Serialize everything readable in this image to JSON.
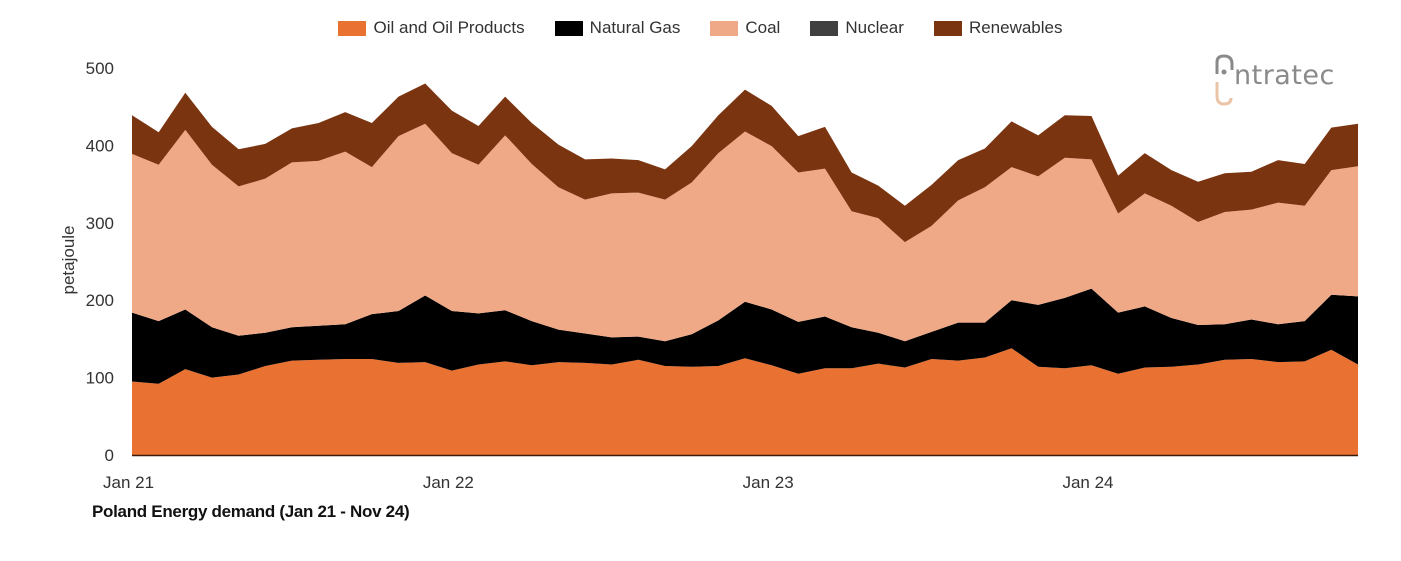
{
  "chart_data": {
    "type": "area",
    "stacked": true,
    "title": "Poland Energy demand (Jan 21 - Nov 24)",
    "xlabel": "",
    "ylabel": "petajoule",
    "ylim": [
      0,
      500
    ],
    "yticks": [
      0,
      100,
      200,
      300,
      400,
      500
    ],
    "xtick_labels": [
      {
        "label": "Jan 21",
        "index": 0
      },
      {
        "label": "Jan 22",
        "index": 12
      },
      {
        "label": "Jan 23",
        "index": 24
      },
      {
        "label": "Jan 24",
        "index": 36
      }
    ],
    "grid": false,
    "legend_position": "top-center",
    "x": [
      "Jan 21",
      "Feb 21",
      "Mar 21",
      "Apr 21",
      "May 21",
      "Jun 21",
      "Jul 21",
      "Aug 21",
      "Sep 21",
      "Oct 21",
      "Nov 21",
      "Dec 21",
      "Jan 22",
      "Feb 22",
      "Mar 22",
      "Apr 22",
      "May 22",
      "Jun 22",
      "Jul 22",
      "Aug 22",
      "Sep 22",
      "Oct 22",
      "Nov 22",
      "Dec 22",
      "Jan 23",
      "Feb 23",
      "Mar 23",
      "Apr 23",
      "May 23",
      "Jun 23",
      "Jul 23",
      "Aug 23",
      "Sep 23",
      "Oct 23",
      "Nov 23",
      "Dec 23",
      "Jan 24",
      "Feb 24",
      "Mar 24",
      "Apr 24",
      "May 24",
      "Jun 24",
      "Jul 24",
      "Aug 24",
      "Sep 24",
      "Oct 24",
      "Nov 24"
    ],
    "series": [
      {
        "name": "Oil and Oil Products",
        "color": "#E97132",
        "values": [
          95,
          92,
          111,
          100,
          104,
          115,
          122,
          123,
          124,
          124,
          119,
          120,
          109,
          117,
          121,
          116,
          120,
          119,
          117,
          123,
          115,
          114,
          115,
          125,
          116,
          105,
          112,
          112,
          118,
          113,
          124,
          122,
          126,
          138,
          114,
          112,
          116,
          105,
          113,
          114,
          117,
          123,
          124,
          120,
          121,
          136,
          117
        ]
      },
      {
        "name": "Natural Gas",
        "color": "#000000",
        "values": [
          89,
          81,
          77,
          65,
          50,
          43,
          43,
          44,
          45,
          58,
          67,
          86,
          77,
          66,
          66,
          57,
          42,
          38,
          35,
          30,
          32,
          42,
          59,
          73,
          72,
          67,
          67,
          53,
          40,
          34,
          35,
          49,
          45,
          62,
          80,
          91,
          99,
          79,
          79,
          63,
          51,
          46,
          51,
          49,
          52,
          71,
          88
        ]
      },
      {
        "name": "Coal",
        "color": "#F0A986",
        "values": [
          205,
          202,
          232,
          210,
          193,
          199,
          213,
          213,
          223,
          190,
          226,
          222,
          204,
          192,
          226,
          203,
          184,
          173,
          186,
          186,
          183,
          196,
          216,
          220,
          211,
          193,
          191,
          150,
          148,
          128,
          137,
          158,
          175,
          172,
          166,
          181,
          167,
          128,
          146,
          145,
          133,
          145,
          142,
          157,
          149,
          161,
          168
        ]
      },
      {
        "name": "Nuclear",
        "color": "#404040",
        "values": [
          0,
          0,
          0,
          0,
          0,
          0,
          0,
          0,
          0,
          0,
          0,
          0,
          0,
          0,
          0,
          0,
          0,
          0,
          0,
          0,
          0,
          0,
          0,
          0,
          0,
          0,
          0,
          0,
          0,
          0,
          0,
          0,
          0,
          0,
          0,
          0,
          0,
          0,
          0,
          0,
          0,
          0,
          0,
          0,
          0,
          0,
          0
        ]
      },
      {
        "name": "Renewables",
        "color": "#7B3410",
        "values": [
          50,
          42,
          48,
          49,
          48,
          45,
          44,
          49,
          51,
          57,
          51,
          52,
          55,
          50,
          50,
          53,
          55,
          52,
          45,
          42,
          39,
          47,
          49,
          54,
          52,
          47,
          54,
          50,
          42,
          47,
          53,
          52,
          50,
          59,
          53,
          55,
          56,
          49,
          52,
          46,
          52,
          50,
          49,
          55,
          54,
          55,
          55
        ]
      }
    ]
  },
  "logo": {
    "text": "ntratec"
  }
}
